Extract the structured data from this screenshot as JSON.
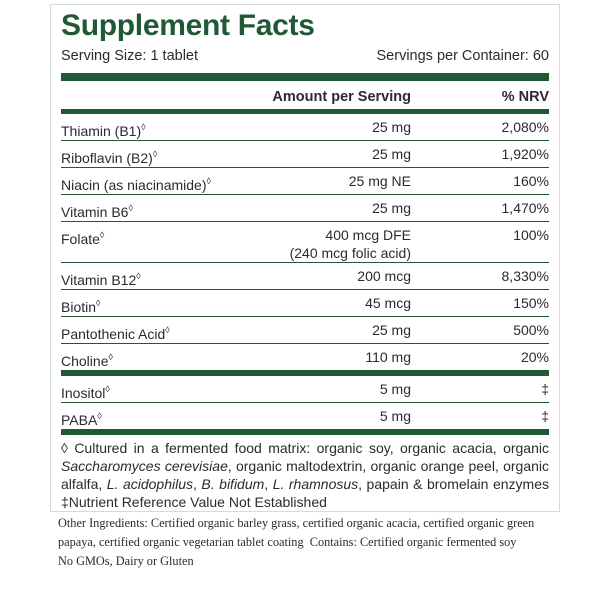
{
  "header": {
    "title": "Supplement Facts",
    "serving_size": "Serving Size: 1 tablet",
    "servings_per_container": "Servings per Container: 60"
  },
  "table": {
    "columns": [
      "Amount per Serving",
      "% NRV"
    ],
    "groups": [
      {
        "rows": [
          {
            "name": "Thiamin (B1)",
            "mark": "◊",
            "amount": "25 mg",
            "nrv": "2,080%"
          },
          {
            "name": "Riboflavin (B2)",
            "mark": "◊",
            "amount": "25 mg",
            "nrv": "1,920%"
          },
          {
            "name": "Niacin (as niacinamide)",
            "mark": "◊",
            "amount": "25 mg NE",
            "nrv": "160%"
          },
          {
            "name": "Vitamin B6",
            "mark": "◊",
            "amount": "25 mg",
            "nrv": "1,470%"
          },
          {
            "name": "Folate",
            "mark": "◊",
            "amount": "400 mcg DFE",
            "amount_note": "(240 mcg folic acid)",
            "nrv": "100%"
          },
          {
            "name": "Vitamin B12",
            "mark": "◊",
            "amount": "200 mcg",
            "nrv": "8,330%"
          },
          {
            "name": "Biotin",
            "mark": "◊",
            "amount": "45 mcg",
            "nrv": "150%"
          },
          {
            "name": "Pantothenic Acid",
            "mark": "◊",
            "amount": "25 mg",
            "nrv": "500%"
          },
          {
            "name": "Choline",
            "mark": "◊",
            "amount": "110 mg",
            "nrv": "20%"
          }
        ]
      },
      {
        "rows": [
          {
            "name": "Inositol",
            "mark": "◊",
            "amount": "5 mg",
            "nrv": "‡"
          },
          {
            "name": "PABA",
            "mark": "◊",
            "amount": "5 mg",
            "nrv": "‡"
          }
        ]
      }
    ]
  },
  "footnotes": {
    "lines": [
      [
        {
          "text": "◊ Cultured in a fermented food matrix: organic soy, organic acacia, organic",
          "italic": false
        }
      ],
      [
        {
          "text": "Saccharomyces cerevisiae",
          "italic": true
        },
        {
          "text": ", organic maltodextrin, organic orange peel, organic",
          "italic": false
        }
      ],
      [
        {
          "text": "alfalfa, ",
          "italic": false
        },
        {
          "text": "L. acidophilus",
          "italic": true
        },
        {
          "text": ", ",
          "italic": false
        },
        {
          "text": "B. bifidum",
          "italic": true
        },
        {
          "text": ", ",
          "italic": false
        },
        {
          "text": "L. rhamnosus",
          "italic": true
        },
        {
          "text": ", papain & bromelain enzymes",
          "italic": false
        }
      ]
    ],
    "nrv_note": "‡Nutrient Reference Value Not Established"
  },
  "other_ingredients": [
    "Other Ingredients: Certified organic barley grass, certified organic acacia, certified organic green",
    "papaya, certified organic vegetarian tablet coating  Contains: Certified organic fermented soy",
    "No GMOs, Dairy or Gluten"
  ]
}
